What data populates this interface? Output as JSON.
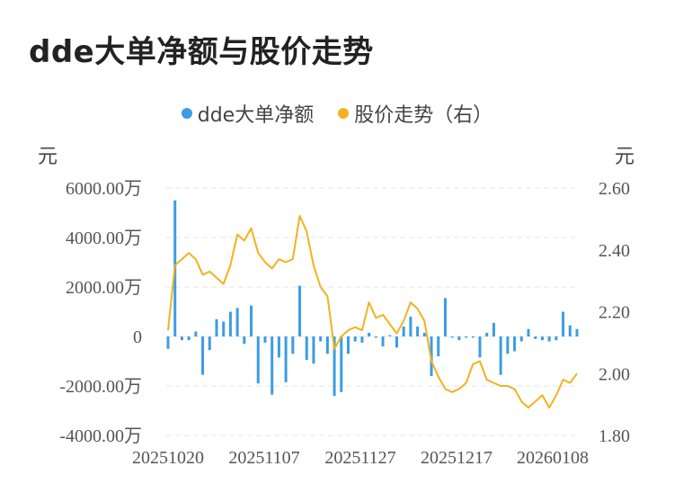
{
  "title": "dde大单净额与股价走势",
  "legend": {
    "bars_label": "dde大单净额",
    "line_label": "股价走势（右）"
  },
  "units": {
    "left": "元",
    "right": "元"
  },
  "colors": {
    "bar": "#3b9de3",
    "line": "#f2b21f",
    "grid": "#e6e6e6"
  },
  "chart_data": {
    "type": "bar+line",
    "title": "dde大单净额与股价走势",
    "x_tick_labels": [
      "20251020",
      "20251107",
      "20251127",
      "20251217",
      "20260108"
    ],
    "left_axis": {
      "ylim": [
        -4000,
        6000
      ],
      "ticks": [
        6000,
        4000,
        2000,
        0,
        -2000,
        -4000
      ],
      "tick_labels": [
        "6000.00万",
        "4000.00万",
        "2000.00万",
        "0",
        "-2000.00万",
        "-4000.00万"
      ]
    },
    "right_axis": {
      "ylim": [
        1.8,
        2.6
      ],
      "ticks": [
        2.6,
        2.4,
        2.2,
        2.0,
        1.8
      ],
      "tick_labels": [
        "2.60",
        "2.40",
        "2.20",
        "2.00",
        "1.80"
      ]
    },
    "grid": true,
    "series": [
      {
        "name": "dde大单净额",
        "type": "bar",
        "axis": "left",
        "unit": "万元",
        "values": [
          -500,
          5500,
          -150,
          -150,
          200,
          -1550,
          -550,
          700,
          600,
          1000,
          1150,
          -300,
          1250,
          -1900,
          -250,
          -2350,
          -850,
          -1850,
          -700,
          2050,
          -950,
          -1100,
          -200,
          -700,
          -2400,
          -2250,
          -700,
          -200,
          -250,
          150,
          -50,
          -400,
          50,
          -450,
          400,
          800,
          400,
          150,
          -1600,
          -800,
          1550,
          -50,
          -150,
          -50,
          -50,
          -850,
          150,
          550,
          -1550,
          -700,
          -600,
          -200,
          300,
          -100,
          -150,
          -200,
          -150,
          1000,
          450,
          300
        ]
      },
      {
        "name": "股价走势（右）",
        "type": "line",
        "axis": "right",
        "unit": "元",
        "values": [
          2.14,
          2.35,
          2.37,
          2.39,
          2.37,
          2.32,
          2.33,
          2.31,
          2.29,
          2.35,
          2.45,
          2.43,
          2.47,
          2.39,
          2.36,
          2.34,
          2.37,
          2.36,
          2.37,
          2.51,
          2.46,
          2.35,
          2.28,
          2.25,
          2.08,
          2.12,
          2.14,
          2.15,
          2.14,
          2.23,
          2.18,
          2.19,
          2.16,
          2.13,
          2.17,
          2.23,
          2.21,
          2.17,
          2.04,
          1.99,
          1.95,
          1.94,
          1.95,
          1.97,
          2.03,
          2.04,
          1.98,
          1.97,
          1.96,
          1.96,
          1.95,
          1.91,
          1.89,
          1.91,
          1.93,
          1.89,
          1.93,
          1.98,
          1.97,
          2.0
        ]
      }
    ]
  }
}
